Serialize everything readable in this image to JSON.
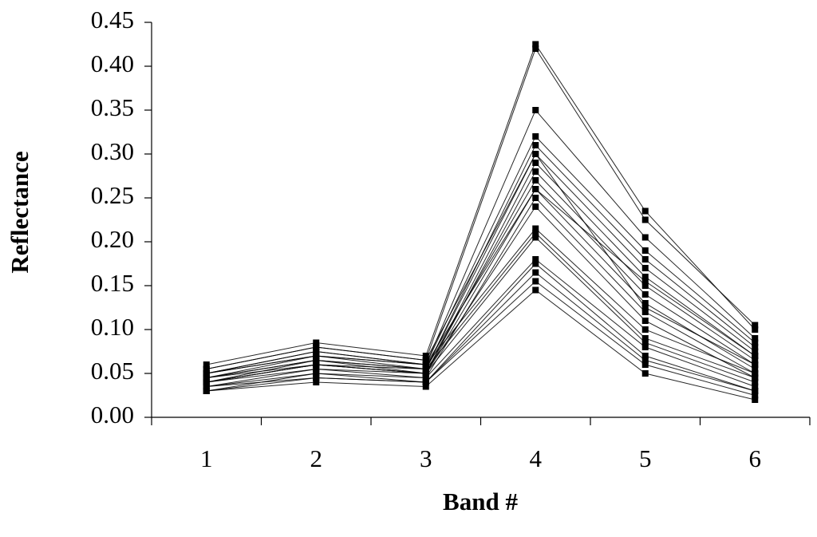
{
  "chart_data": {
    "type": "line",
    "x_label": "Band #",
    "y_label": "Reflectance",
    "categories": [
      "1",
      "2",
      "3",
      "4",
      "5",
      "6"
    ],
    "color": "#000000",
    "grid": false,
    "ylim": [
      0,
      0.45
    ],
    "yticks": [
      {
        "value": 0,
        "label": "0.00"
      },
      {
        "value": 0.05,
        "label": "0.05"
      },
      {
        "value": 0.1,
        "label": "0.10"
      },
      {
        "value": 0.15,
        "label": "0.15"
      },
      {
        "value": 0.2,
        "label": "0.20"
      },
      {
        "value": 0.25,
        "label": "0.25"
      },
      {
        "value": 0.3,
        "label": "0.30"
      },
      {
        "value": 0.35,
        "label": "0.35"
      },
      {
        "value": 0.4,
        "label": "0.40"
      },
      {
        "value": 0.45,
        "label": "0.45"
      }
    ],
    "series": [
      {
        "values": [
          0.06,
          0.085,
          0.07,
          0.425,
          0.235,
          0.1
        ]
      },
      {
        "values": [
          0.055,
          0.08,
          0.065,
          0.42,
          0.225,
          0.105
        ]
      },
      {
        "values": [
          0.05,
          0.075,
          0.06,
          0.35,
          0.205,
          0.09
        ]
      },
      {
        "values": [
          0.05,
          0.07,
          0.06,
          0.32,
          0.19,
          0.085
        ]
      },
      {
        "values": [
          0.045,
          0.07,
          0.055,
          0.31,
          0.18,
          0.08
        ]
      },
      {
        "values": [
          0.045,
          0.065,
          0.055,
          0.3,
          0.17,
          0.075
        ]
      },
      {
        "values": [
          0.04,
          0.065,
          0.05,
          0.29,
          0.16,
          0.07
        ]
      },
      {
        "values": [
          0.04,
          0.06,
          0.05,
          0.28,
          0.15,
          0.065
        ]
      },
      {
        "values": [
          0.045,
          0.06,
          0.055,
          0.27,
          0.14,
          0.06
        ]
      },
      {
        "values": [
          0.04,
          0.055,
          0.05,
          0.26,
          0.13,
          0.055
        ]
      },
      {
        "values": [
          0.035,
          0.055,
          0.045,
          0.25,
          0.12,
          0.05
        ]
      },
      {
        "values": [
          0.04,
          0.06,
          0.05,
          0.24,
          0.11,
          0.045
        ]
      },
      {
        "values": [
          0.05,
          0.07,
          0.06,
          0.215,
          0.1,
          0.05
        ]
      },
      {
        "values": [
          0.045,
          0.065,
          0.055,
          0.21,
          0.09,
          0.045
        ]
      },
      {
        "values": [
          0.04,
          0.06,
          0.05,
          0.205,
          0.085,
          0.04
        ]
      },
      {
        "values": [
          0.035,
          0.05,
          0.045,
          0.18,
          0.08,
          0.035
        ]
      },
      {
        "values": [
          0.03,
          0.05,
          0.04,
          0.175,
          0.07,
          0.03
        ]
      },
      {
        "values": [
          0.035,
          0.045,
          0.04,
          0.165,
          0.065,
          0.03
        ]
      },
      {
        "values": [
          0.03,
          0.045,
          0.04,
          0.155,
          0.06,
          0.025
        ]
      },
      {
        "values": [
          0.03,
          0.04,
          0.035,
          0.145,
          0.05,
          0.02
        ]
      },
      {
        "values": [
          0.055,
          0.08,
          0.065,
          0.3,
          0.125,
          0.06
        ]
      },
      {
        "values": [
          0.05,
          0.075,
          0.06,
          0.26,
          0.155,
          0.07
        ]
      }
    ]
  }
}
